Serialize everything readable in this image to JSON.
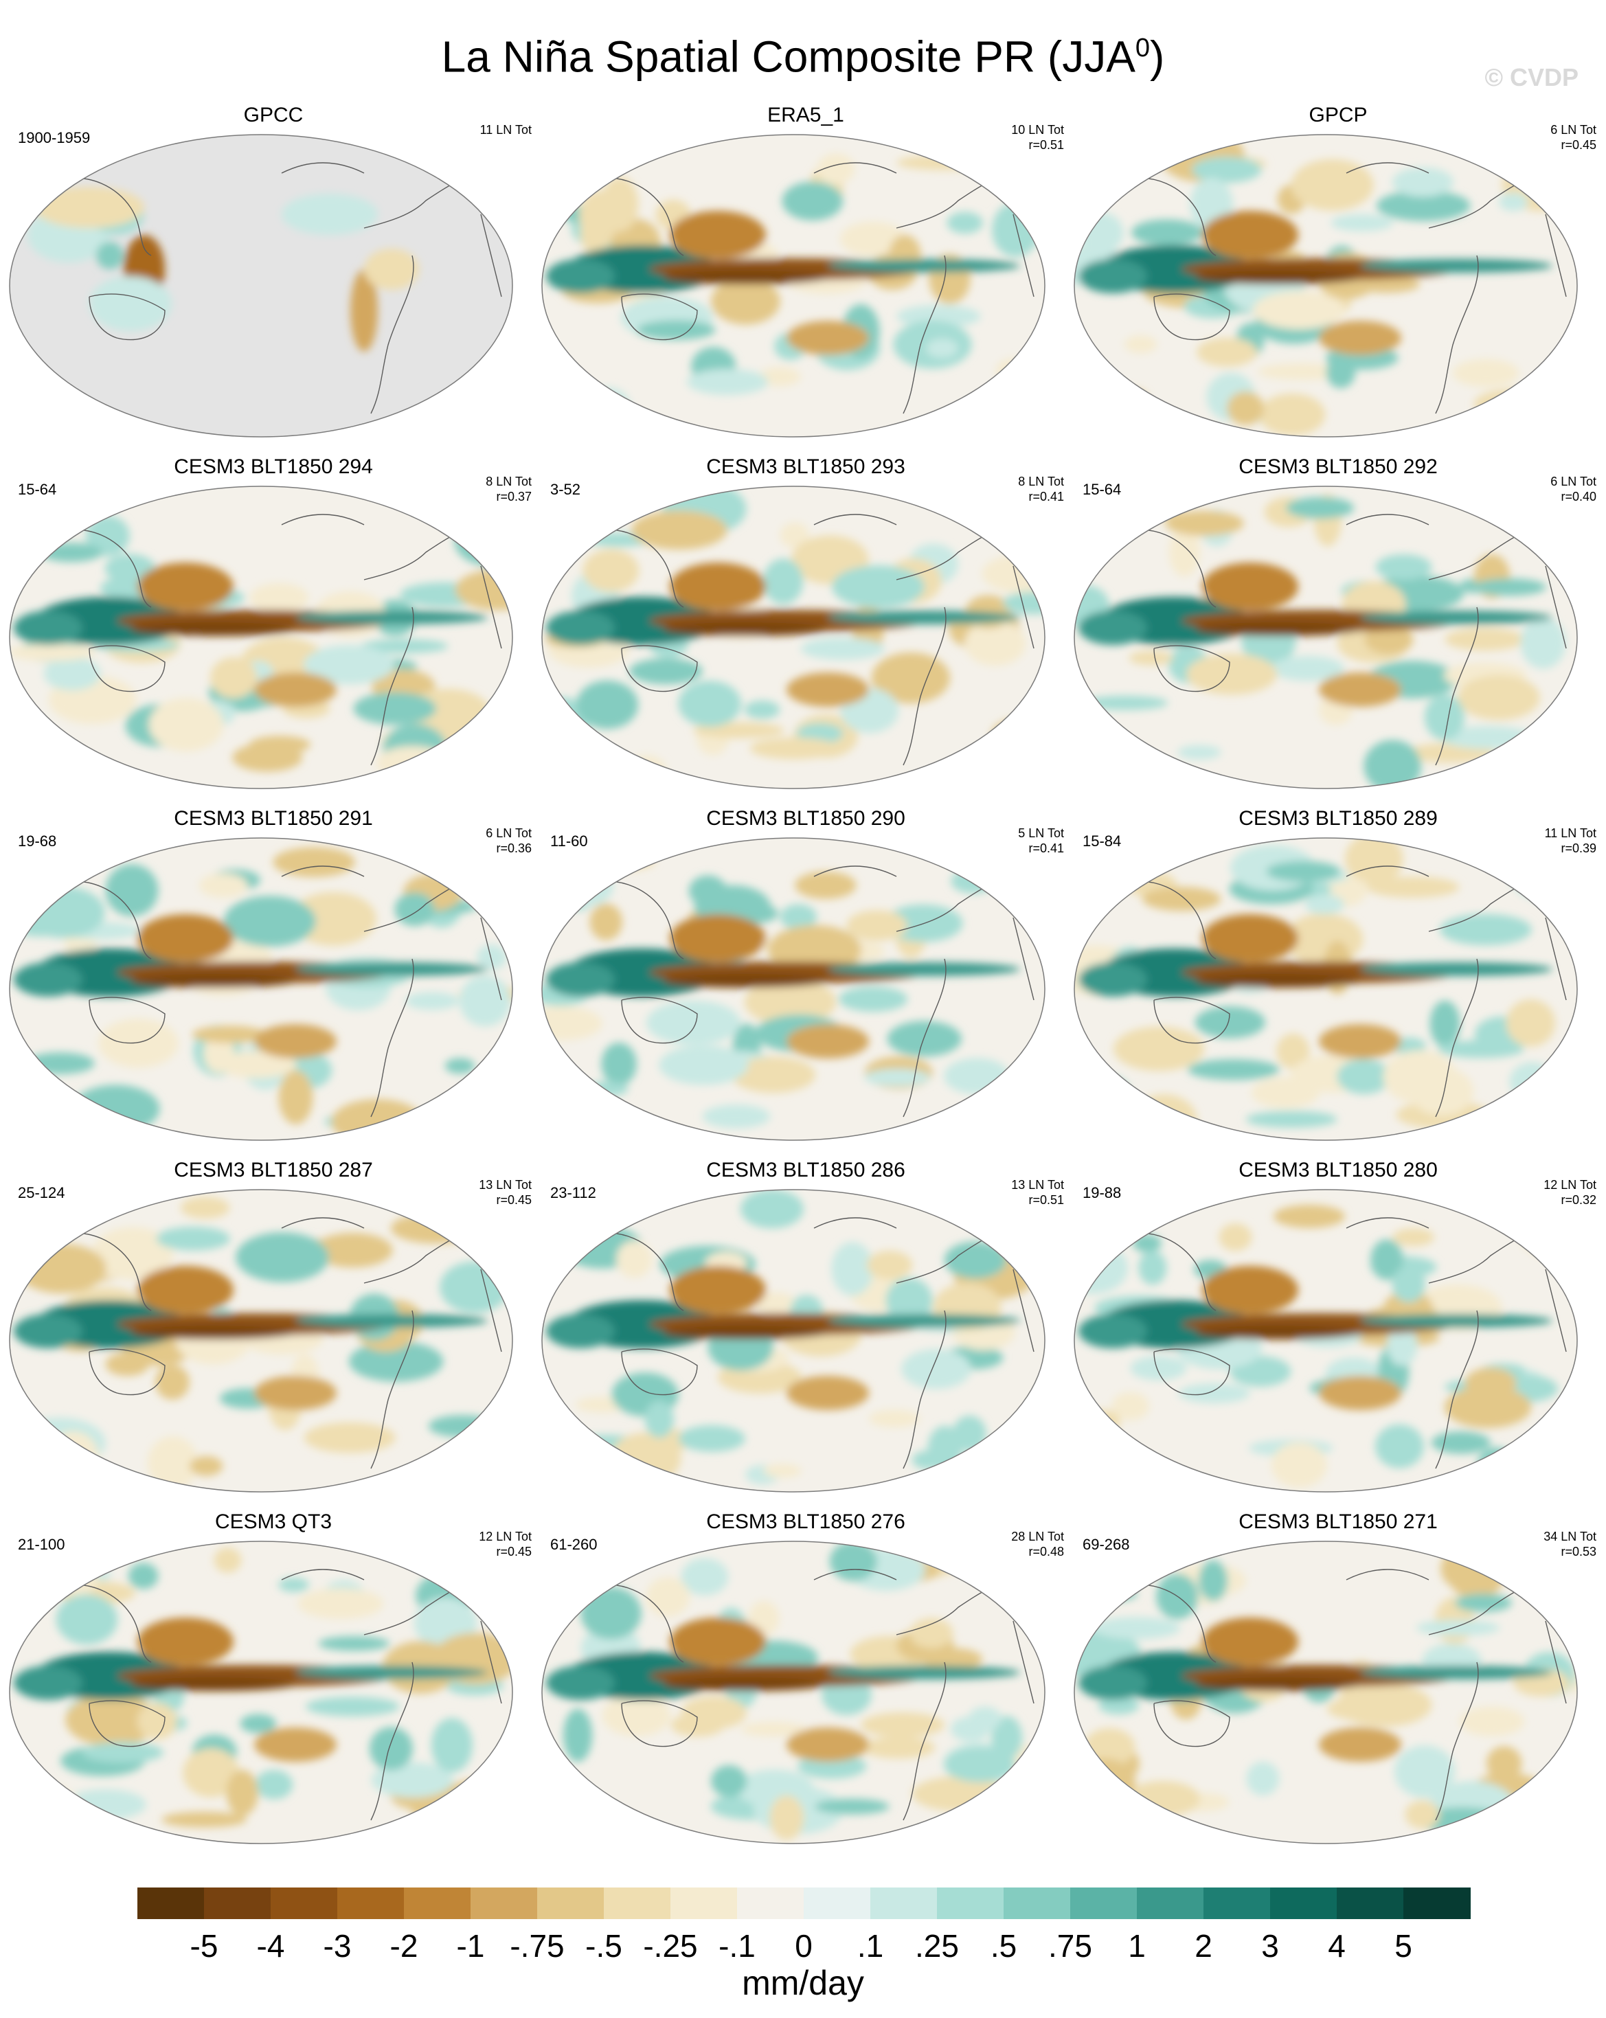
{
  "figure": {
    "title": "La Niña Spatial Composite PR (JJA",
    "title_superscript": "0",
    "title_close": ")",
    "watermark": "© CVDP",
    "units": "mm/day"
  },
  "chart_data": {
    "type": "heatmap",
    "projection": "Robinson (global, Pacific-centered)",
    "colorbar": {
      "levels": [
        "-5",
        "-4",
        "-3",
        "-2",
        "-1",
        "-.75",
        "-.5",
        "-.25",
        "-.1",
        "0",
        ".1",
        ".25",
        ".5",
        ".75",
        "1",
        "2",
        "3",
        "4",
        "5"
      ],
      "colors": [
        "#5a3409",
        "#774210",
        "#8f5214",
        "#a8681e",
        "#c08536",
        "#d3a75f",
        "#e3c889",
        "#efdeb1",
        "#f5ebd0",
        "#f4f1ea",
        "#e7f2f1",
        "#c9e9e4",
        "#a6ddd4",
        "#84ccc0",
        "#5bb3a6",
        "#3a998c",
        "#1e7f73",
        "#0e6a5d",
        "#0a5247",
        "#063b32"
      ]
    },
    "panels": [
      {
        "title": "GPCC",
        "years": "1900-1959",
        "count": "11 LN Tot",
        "r": "",
        "kind": "obs_land"
      },
      {
        "title": "ERA5_1",
        "years": "",
        "count": "10 LN Tot",
        "r": "r=0.51",
        "kind": "obs"
      },
      {
        "title": "GPCP",
        "years": "",
        "count": "6 LN Tot",
        "r": "r=0.45",
        "kind": "obs"
      },
      {
        "title": "CESM3 BLT1850 294",
        "years": "15-64",
        "count": "8 LN Tot",
        "r": "r=0.37",
        "kind": "model"
      },
      {
        "title": "CESM3 BLT1850 293",
        "years": "3-52",
        "count": "8 LN Tot",
        "r": "r=0.41",
        "kind": "model"
      },
      {
        "title": "CESM3 BLT1850 292",
        "years": "15-64",
        "count": "6 LN Tot",
        "r": "r=0.40",
        "kind": "model"
      },
      {
        "title": "CESM3 BLT1850 291",
        "years": "19-68",
        "count": "6 LN Tot",
        "r": "r=0.36",
        "kind": "model"
      },
      {
        "title": "CESM3 BLT1850 290",
        "years": "11-60",
        "count": "5 LN Tot",
        "r": "r=0.41",
        "kind": "model"
      },
      {
        "title": "CESM3 BLT1850 289",
        "years": "15-84",
        "count": "11 LN Tot",
        "r": "r=0.39",
        "kind": "model"
      },
      {
        "title": "CESM3 BLT1850 287",
        "years": "25-124",
        "count": "13 LN Tot",
        "r": "r=0.45",
        "kind": "model"
      },
      {
        "title": "CESM3 BLT1850 286",
        "years": "23-112",
        "count": "13 LN Tot",
        "r": "r=0.51",
        "kind": "model"
      },
      {
        "title": "CESM3 BLT1850 280",
        "years": "19-88",
        "count": "12 LN Tot",
        "r": "r=0.32",
        "kind": "model"
      },
      {
        "title": "CESM3 QT3",
        "years": "21-100",
        "count": "12 LN Tot",
        "r": "r=0.45",
        "kind": "model"
      },
      {
        "title": "CESM3 BLT1850 276",
        "years": "61-260",
        "count": "28 LN Tot",
        "r": "r=0.48",
        "kind": "model"
      },
      {
        "title": "CESM3 BLT1850 271",
        "years": "69-268",
        "count": "34 LN Tot",
        "r": "r=0.53",
        "kind": "model"
      }
    ]
  }
}
